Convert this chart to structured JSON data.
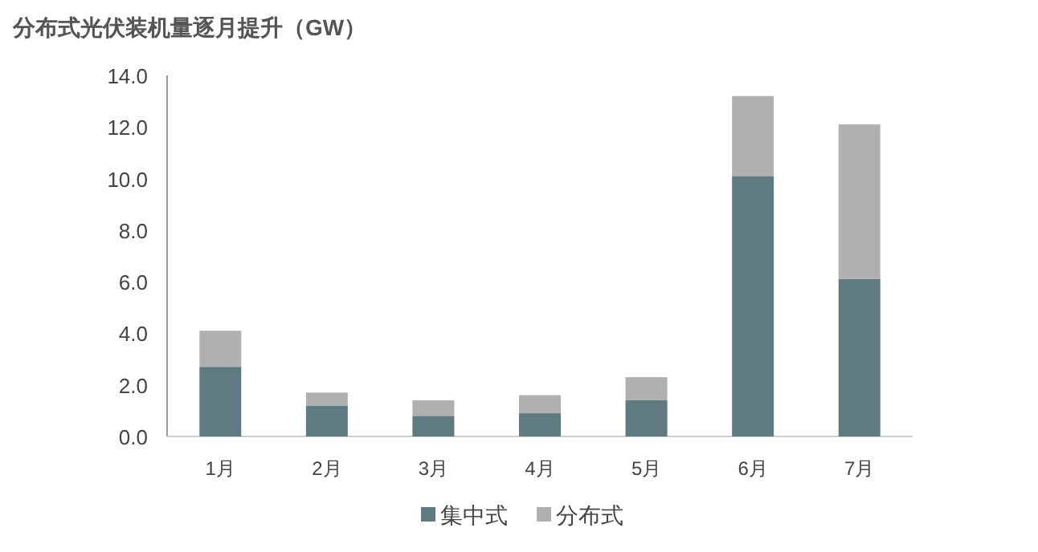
{
  "chart_data": {
    "type": "bar",
    "title": "分布式光伏装机量逐月提升（GW）",
    "categories": [
      "1月",
      "2月",
      "3月",
      "4月",
      "5月",
      "6月",
      "7月"
    ],
    "stacked": true,
    "series": [
      {
        "name": "集中式",
        "color": "#5f7a80",
        "values": [
          2.7,
          1.2,
          0.8,
          0.9,
          1.4,
          10.1,
          6.1
        ]
      },
      {
        "name": "分布式",
        "color": "#b0b0b2",
        "values": [
          1.4,
          0.5,
          0.6,
          0.7,
          0.9,
          3.1,
          6.0
        ]
      }
    ],
    "ylim": [
      0,
      14
    ],
    "yticks": [
      {
        "value": 0,
        "label": "0.0"
      },
      {
        "value": 2,
        "label": "2.0"
      },
      {
        "value": 4,
        "label": "4.0"
      },
      {
        "value": 6,
        "label": "6.0"
      },
      {
        "value": 8,
        "label": "8.0"
      },
      {
        "value": 10,
        "label": "10.0"
      },
      {
        "value": 12,
        "label": "12.0"
      },
      {
        "value": 14,
        "label": "14.0"
      }
    ],
    "legend": "bottom"
  }
}
